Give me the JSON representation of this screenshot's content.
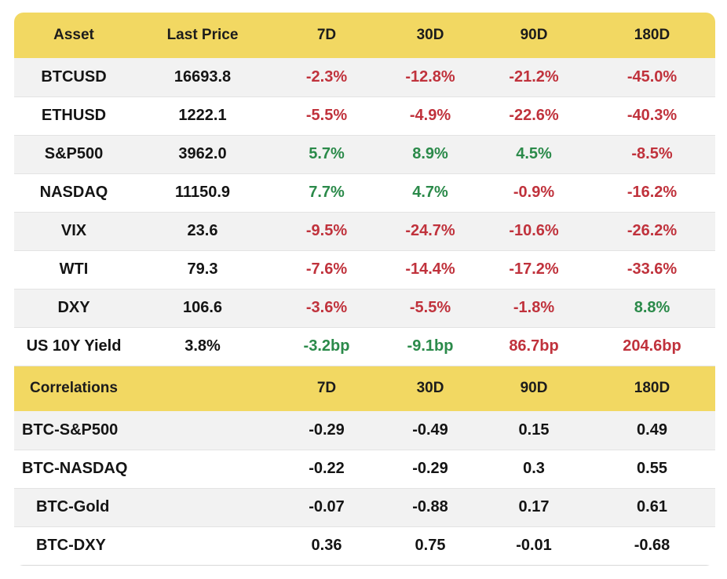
{
  "colors": {
    "header_bg": "#f2d862",
    "negative": "#c0323c",
    "positive": "#2b8a4a",
    "row_shade": "#f2f2f2"
  },
  "performance": {
    "headers": [
      "Asset",
      "Last Price",
      "7D",
      "30D",
      "90D",
      "180D"
    ],
    "rows": [
      {
        "asset": "BTCUSD",
        "price": "16693.8",
        "d7": "-2.3%",
        "d30": "-12.8%",
        "d90": "-21.2%",
        "d180": "-45.0%"
      },
      {
        "asset": "ETHUSD",
        "price": "1222.1",
        "d7": "-5.5%",
        "d30": "-4.9%",
        "d90": "-22.6%",
        "d180": "-40.3%"
      },
      {
        "asset": "S&P500",
        "price": "3962.0",
        "d7": "5.7%",
        "d30": "8.9%",
        "d90": "4.5%",
        "d180": "-8.5%"
      },
      {
        "asset": "NASDAQ",
        "price": "11150.9",
        "d7": "7.7%",
        "d30": "4.7%",
        "d90": "-0.9%",
        "d180": "-16.2%"
      },
      {
        "asset": "VIX",
        "price": "23.6",
        "d7": "-9.5%",
        "d30": "-24.7%",
        "d90": "-10.6%",
        "d180": "-26.2%"
      },
      {
        "asset": "WTI",
        "price": "79.3",
        "d7": "-7.6%",
        "d30": "-14.4%",
        "d90": "-17.2%",
        "d180": "-33.6%"
      },
      {
        "asset": "DXY",
        "price": "106.6",
        "d7": "-3.6%",
        "d30": "-5.5%",
        "d90": "-1.8%",
        "d180": "8.8%"
      },
      {
        "asset": "US 10Y Yield",
        "price": "3.8%",
        "d7": "-3.2bp",
        "d30": "-9.1bp",
        "d90": "86.7bp",
        "d180": "204.6bp"
      }
    ]
  },
  "correlations": {
    "headers": [
      "Correlations",
      "",
      "7D",
      "30D",
      "90D",
      "180D"
    ],
    "rows": [
      {
        "pair": "BTC-S&P500",
        "d7": "-0.29",
        "d30": "-0.49",
        "d90": "0.15",
        "d180": "0.49"
      },
      {
        "pair": "BTC-NASDAQ",
        "d7": "-0.22",
        "d30": "-0.29",
        "d90": "0.3",
        "d180": "0.55"
      },
      {
        "pair": "BTC-Gold",
        "d7": "-0.07",
        "d30": "-0.88",
        "d90": "0.17",
        "d180": "0.61"
      },
      {
        "pair": "BTC-DXY",
        "d7": "0.36",
        "d30": "0.75",
        "d90": "-0.01",
        "d180": "-0.68"
      }
    ]
  }
}
